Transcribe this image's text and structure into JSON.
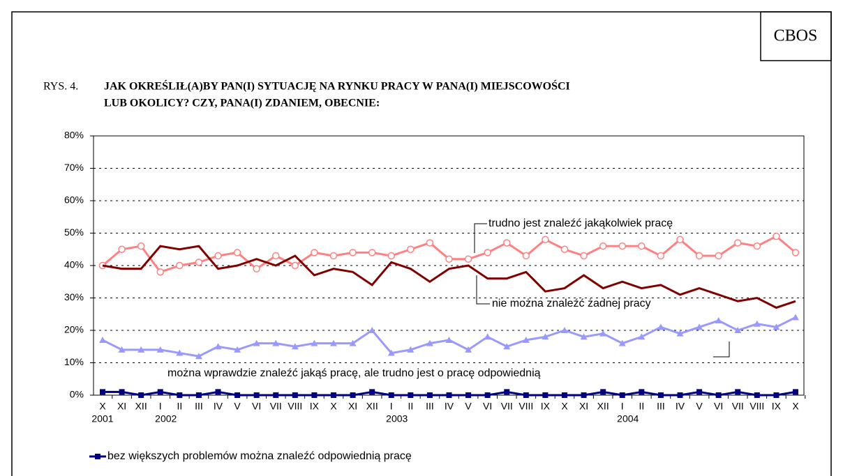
{
  "chart_data": {
    "type": "line",
    "source": "CBOS",
    "figure_label": "RYS. 4.",
    "title": [
      "JAK OKREŚLIŁ(A)BY PAN(I) SYTUACJĘ NA RYNKU PRACY W PANA(I) MIEJSCOWOŚCI",
      "LUB OKOLICY? CZY, PANA(I) ZDANIEM, OBECNIE:"
    ],
    "categories": [
      "X",
      "XI",
      "XII",
      "I",
      "II",
      "III",
      "IV",
      "V",
      "VI",
      "VII",
      "VIII",
      "IX",
      "X",
      "XI",
      "XII",
      "I",
      "II",
      "III",
      "IV",
      "V",
      "VI",
      "VII",
      "VIII",
      "IX",
      "X",
      "XI",
      "XII",
      "I",
      "II",
      "III",
      "IV",
      "V",
      "VI",
      "VII",
      "VIII",
      "IX",
      "X"
    ],
    "years": [
      "2001",
      null,
      null,
      "2002",
      null,
      null,
      null,
      null,
      null,
      null,
      null,
      null,
      null,
      null,
      null,
      "2003",
      null,
      null,
      null,
      null,
      null,
      null,
      null,
      null,
      null,
      null,
      null,
      "2004",
      null,
      null,
      null,
      null,
      null,
      null,
      null,
      null,
      null
    ],
    "ylim": [
      0,
      80
    ],
    "yticks": [
      {
        "value": 0,
        "label": "0%"
      },
      {
        "value": 10,
        "label": "10%"
      },
      {
        "value": 20,
        "label": "20%"
      },
      {
        "value": 30,
        "label": "30%"
      },
      {
        "value": 40,
        "label": "40%"
      },
      {
        "value": 50,
        "label": "50%"
      },
      {
        "value": 60,
        "label": "60%"
      },
      {
        "value": 70,
        "label": "70%"
      },
      {
        "value": 80,
        "label": "80%"
      }
    ],
    "grid": true,
    "series": [
      {
        "name": "trudno jest znaleźć jakąkolwiek pracę",
        "color": "#ff8080",
        "marker": "circle",
        "values": [
          40,
          45,
          46,
          38,
          40,
          41,
          43,
          44,
          39,
          43,
          40,
          44,
          43,
          44,
          44,
          43,
          45,
          47,
          42,
          42,
          44,
          47,
          43,
          48,
          45,
          43,
          46,
          46,
          46,
          43,
          48,
          43,
          43,
          47,
          46,
          49,
          44
        ]
      },
      {
        "name": "nie można znaleźć żadnej pracy",
        "color": "#800000",
        "marker": "none",
        "values": [
          40,
          39,
          39,
          46,
          45,
          46,
          39,
          40,
          42,
          40,
          43,
          37,
          39,
          38,
          34,
          41,
          39,
          35,
          39,
          40,
          36,
          36,
          38,
          32,
          33,
          37,
          33,
          35,
          33,
          34,
          31,
          33,
          31,
          29,
          30,
          27,
          29
        ]
      },
      {
        "name": "można wprawdzie znaleźć jakąś pracę, ale trudno jest o pracę odpowiednią",
        "color": "#9999ff",
        "marker": "triangle",
        "values": [
          17,
          14,
          14,
          14,
          13,
          12,
          15,
          14,
          16,
          16,
          15,
          16,
          16,
          16,
          20,
          13,
          14,
          16,
          17,
          14,
          18,
          15,
          17,
          18,
          20,
          18,
          19,
          16,
          18,
          21,
          19,
          21,
          23,
          20,
          22,
          21,
          24
        ]
      },
      {
        "name": "bez większych problemów można znaleźć odpowiednią pracę",
        "color": "#000080",
        "marker": "square",
        "values": [
          1,
          1,
          0,
          1,
          0,
          0,
          1,
          0,
          0,
          0,
          0,
          0,
          0,
          0,
          1,
          0,
          0,
          0,
          0,
          0,
          0,
          1,
          0,
          0,
          0,
          0,
          1,
          0,
          1,
          0,
          0,
          1,
          0,
          1,
          0,
          0,
          1
        ]
      }
    ]
  }
}
